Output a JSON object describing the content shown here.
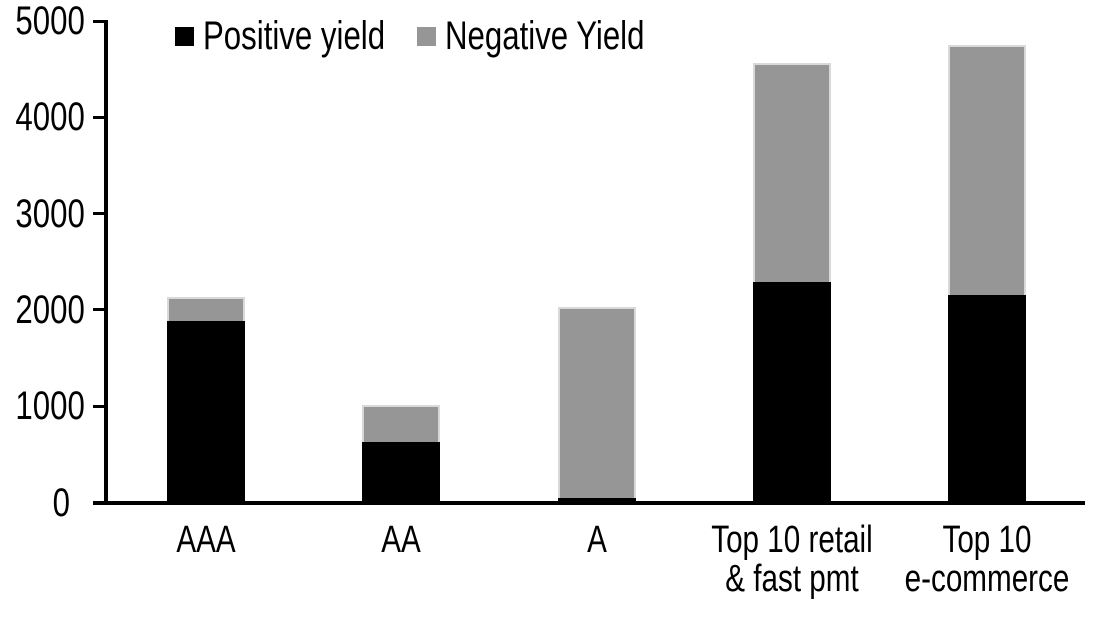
{
  "chart_data": {
    "type": "bar",
    "stacked": true,
    "title": "",
    "xlabel": "",
    "ylabel": "",
    "categories": [
      "AAA",
      "AA",
      "A",
      "Top 10 retail\n& fast pmt",
      "Top 10\ne-commerce"
    ],
    "series": [
      {
        "name": "Positive yield",
        "color": "#000000",
        "values": [
          1880,
          625,
          50,
          2290,
          2150
        ]
      },
      {
        "name": "Negative Yield",
        "color": "#969696",
        "values": [
          250,
          385,
          1985,
          2270,
          2600
        ]
      }
    ],
    "ylim": [
      0,
      5000
    ],
    "yticks": [
      0,
      1000,
      2000,
      3000,
      4000,
      5000
    ],
    "grid": false,
    "legend_position": "top-left",
    "axis_color": "#000000",
    "background_color": "#ffffff"
  }
}
